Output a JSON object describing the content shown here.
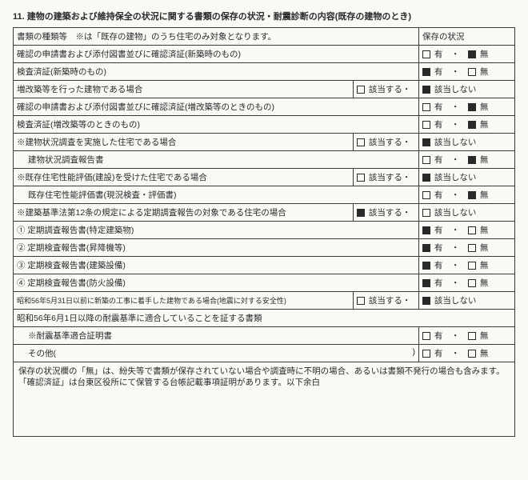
{
  "title": "11. 建物の建築および維持保全の状況に関する書類の保存の状況・耐震診断の内容(既存の建物のとき)",
  "header_left": "書類の種類等　※は「既存の建物」のうち住宅のみ対象となります。",
  "header_right": "保存の状況",
  "label_yes": "有",
  "label_no": "無",
  "label_sep": "・",
  "label_apply": "該当する",
  "label_notapply": "該当しない",
  "rows": [
    {
      "t": "doc",
      "text": "確認の申請書および添付図書並びに確認済証(新築時のもの)",
      "yes": false,
      "no": true
    },
    {
      "t": "doc",
      "text": "検査済証(新築時のもの)",
      "yes": true,
      "no": false
    },
    {
      "t": "cond",
      "text": "増改築等を行った建物である場合",
      "apply": false,
      "notapply": true
    },
    {
      "t": "doc_noin",
      "text": "確認の申請書および添付図書並びに確認済証(増改築等のときのもの)",
      "yes": false,
      "no": true
    },
    {
      "t": "doc_noin",
      "text": "検査済証(増改築等のときのもの)",
      "yes": false,
      "no": true
    },
    {
      "t": "cond",
      "text": "※建物状況調査を実施した住宅である場合",
      "apply": false,
      "notapply": true
    },
    {
      "t": "doc",
      "text": "建物状況調査報告書",
      "indent": true,
      "yes": false,
      "no": true
    },
    {
      "t": "cond",
      "text": "※既存住宅性能評価(建設)を受けた住宅である場合",
      "apply": false,
      "notapply": true
    },
    {
      "t": "doc",
      "text": "既存住宅性能評価書(現況検査・評価書)",
      "indent": true,
      "yes": false,
      "no": true
    },
    {
      "t": "cond",
      "text": "※建築基準法第12条の規定による定期調査報告の対象である住宅の場合",
      "apply": true,
      "notapply": false
    },
    {
      "t": "doc_noin",
      "text": "① 定期調査報告書(特定建築物)",
      "yes": true,
      "no": false
    },
    {
      "t": "doc_noin",
      "text": "② 定期検査報告書(昇降機等)",
      "yes": true,
      "no": false
    },
    {
      "t": "doc_noin",
      "text": "③ 定期検査報告書(建築設備)",
      "yes": true,
      "no": false
    },
    {
      "t": "doc_noin",
      "text": "④ 定期検査報告書(防火設備)",
      "yes": true,
      "no": false
    },
    {
      "t": "cond",
      "text": "昭和56年5月31日以前に新築の工事に着手した建物である場合(地震に対する安全性)",
      "apply": false,
      "notapply": true,
      "small": true
    },
    {
      "t": "head",
      "text": "昭和56年6月1日以降の耐震基準に適合していることを証する書類"
    },
    {
      "t": "doc",
      "text": "※耐震基準適合証明書",
      "indent": true,
      "yes": false,
      "no": false
    },
    {
      "t": "doc",
      "text": "その他(",
      "indent": true,
      "tail": ")",
      "yes": false,
      "no": false
    }
  ],
  "footnote": "保存の状況欄の「無」は、紛失等で書類が保存されていない場合や調査時に不明の場合、あるいは書類不発行の場合も含みます。「確認済証」は台東区役所にて保管する台帳記載事項証明があります。以下余白"
}
